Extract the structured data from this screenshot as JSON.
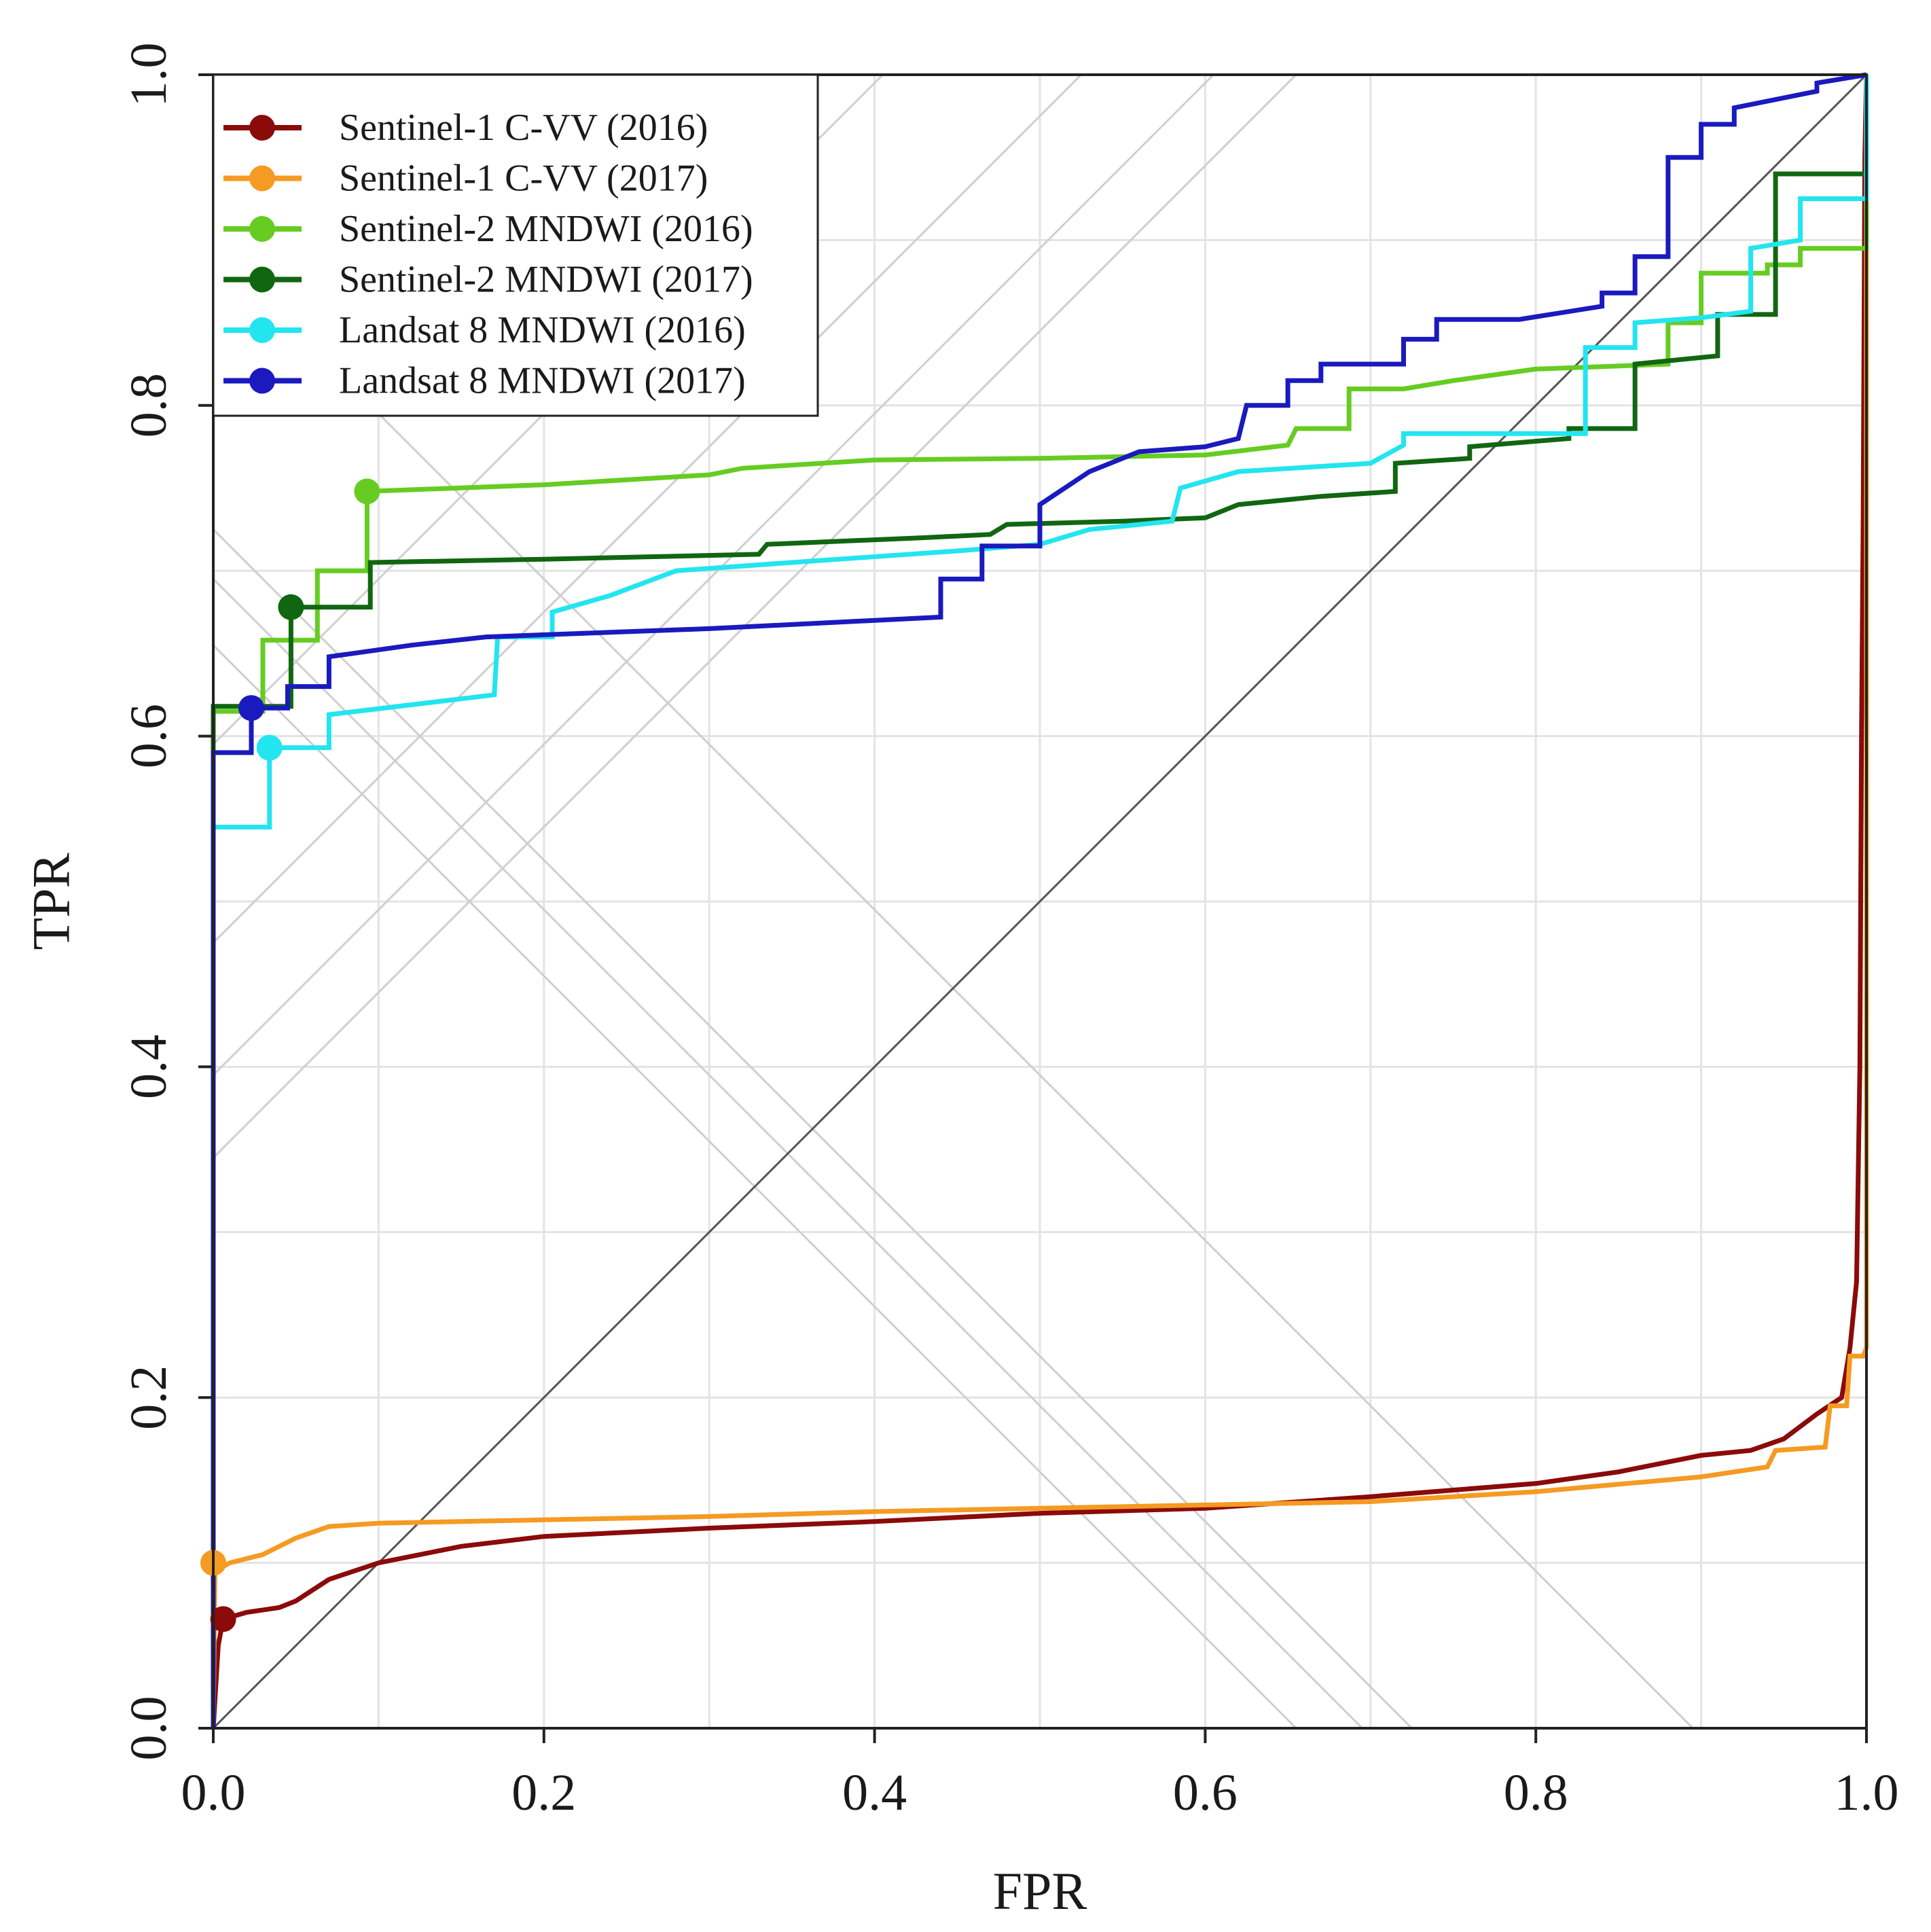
{
  "chart_data": {
    "type": "line",
    "title": "",
    "xlabel": "FPR",
    "ylabel": "TPR",
    "xlim": [
      0,
      1
    ],
    "ylim": [
      0,
      1
    ],
    "x_ticks": [
      0.0,
      0.2,
      0.4,
      0.6,
      0.8,
      1.0
    ],
    "y_ticks": [
      0.0,
      0.2,
      0.4,
      0.6,
      0.8,
      1.0
    ],
    "x_tick_labels": [
      "0.0",
      "0.2",
      "0.4",
      "0.6",
      "0.8",
      "1.0"
    ],
    "y_tick_labels": [
      "0.0",
      "0.2",
      "0.4",
      "0.6",
      "0.8",
      "1.0"
    ],
    "grid": true,
    "legend_position": "top-left",
    "reference_diagonal": true,
    "series": [
      {
        "name": "Sentinel-1 C-VV (2016)",
        "color": "#8B0A0A",
        "step": false,
        "optimal_point": [
          0.006,
          0.066
        ],
        "points": [
          [
            0.0,
            0.0
          ],
          [
            0.003,
            0.05
          ],
          [
            0.006,
            0.066
          ],
          [
            0.02,
            0.07
          ],
          [
            0.04,
            0.073
          ],
          [
            0.05,
            0.077
          ],
          [
            0.07,
            0.09
          ],
          [
            0.1,
            0.1
          ],
          [
            0.15,
            0.11
          ],
          [
            0.2,
            0.116
          ],
          [
            0.3,
            0.121
          ],
          [
            0.4,
            0.125
          ],
          [
            0.5,
            0.13
          ],
          [
            0.6,
            0.133
          ],
          [
            0.7,
            0.14
          ],
          [
            0.8,
            0.148
          ],
          [
            0.85,
            0.155
          ],
          [
            0.9,
            0.165
          ],
          [
            0.93,
            0.168
          ],
          [
            0.95,
            0.175
          ],
          [
            0.97,
            0.19
          ],
          [
            0.985,
            0.2
          ],
          [
            0.99,
            0.23
          ],
          [
            0.994,
            0.27
          ],
          [
            0.996,
            0.4
          ],
          [
            0.997,
            0.6
          ],
          [
            0.998,
            0.73
          ],
          [
            0.999,
            0.95
          ],
          [
            1.0,
            1.0
          ]
        ]
      },
      {
        "name": "Sentinel-1 C-VV (2017)",
        "color": "#F59A22",
        "step": false,
        "optimal_point": [
          0.0,
          0.1
        ],
        "points": [
          [
            0.0,
            0.0
          ],
          [
            0.001,
            0.095
          ],
          [
            0.01,
            0.1
          ],
          [
            0.03,
            0.105
          ],
          [
            0.05,
            0.115
          ],
          [
            0.07,
            0.122
          ],
          [
            0.1,
            0.124
          ],
          [
            0.2,
            0.126
          ],
          [
            0.3,
            0.128
          ],
          [
            0.4,
            0.131
          ],
          [
            0.5,
            0.133
          ],
          [
            0.6,
            0.135
          ],
          [
            0.7,
            0.137
          ],
          [
            0.8,
            0.143
          ],
          [
            0.9,
            0.152
          ],
          [
            0.94,
            0.158
          ],
          [
            0.945,
            0.168
          ],
          [
            0.975,
            0.17
          ],
          [
            0.978,
            0.195
          ],
          [
            0.988,
            0.195
          ],
          [
            0.99,
            0.225
          ],
          [
            0.998,
            0.225
          ],
          [
            1.0,
            0.23
          ],
          [
            1.0,
            1.0
          ]
        ]
      },
      {
        "name": "Sentinel-2 MNDWI (2016)",
        "color": "#66CC22",
        "step": true,
        "optimal_point": [
          0.093,
          0.748
        ],
        "points": [
          [
            0.0,
            0.0
          ],
          [
            0.0,
            0.615
          ],
          [
            0.03,
            0.615
          ],
          [
            0.03,
            0.658
          ],
          [
            0.063,
            0.658
          ],
          [
            0.063,
            0.7
          ],
          [
            0.093,
            0.7
          ],
          [
            0.093,
            0.748
          ],
          [
            0.2,
            0.752
          ],
          [
            0.3,
            0.758
          ],
          [
            0.32,
            0.762
          ],
          [
            0.4,
            0.767
          ],
          [
            0.5,
            0.768
          ],
          [
            0.6,
            0.77
          ],
          [
            0.65,
            0.776
          ],
          [
            0.655,
            0.786
          ],
          [
            0.687,
            0.786
          ],
          [
            0.687,
            0.81
          ],
          [
            0.72,
            0.81
          ],
          [
            0.75,
            0.815
          ],
          [
            0.8,
            0.822
          ],
          [
            0.88,
            0.825
          ],
          [
            0.88,
            0.85
          ],
          [
            0.9,
            0.85
          ],
          [
            0.9,
            0.88
          ],
          [
            0.94,
            0.88
          ],
          [
            0.94,
            0.885
          ],
          [
            0.96,
            0.885
          ],
          [
            0.96,
            0.895
          ],
          [
            1.0,
            0.895
          ],
          [
            1.0,
            1.0
          ]
        ]
      },
      {
        "name": "Sentinel-2 MNDWI (2017)",
        "color": "#116611",
        "step": true,
        "optimal_point": [
          0.047,
          0.678
        ],
        "points": [
          [
            0.0,
            0.0
          ],
          [
            0.0,
            0.618
          ],
          [
            0.047,
            0.618
          ],
          [
            0.047,
            0.678
          ],
          [
            0.095,
            0.678
          ],
          [
            0.095,
            0.705
          ],
          [
            0.2,
            0.707
          ],
          [
            0.33,
            0.71
          ],
          [
            0.335,
            0.716
          ],
          [
            0.43,
            0.72
          ],
          [
            0.47,
            0.722
          ],
          [
            0.48,
            0.728
          ],
          [
            0.55,
            0.73
          ],
          [
            0.6,
            0.732
          ],
          [
            0.62,
            0.74
          ],
          [
            0.67,
            0.745
          ],
          [
            0.715,
            0.748
          ],
          [
            0.715,
            0.765
          ],
          [
            0.76,
            0.768
          ],
          [
            0.76,
            0.775
          ],
          [
            0.82,
            0.78
          ],
          [
            0.82,
            0.786
          ],
          [
            0.86,
            0.786
          ],
          [
            0.86,
            0.825
          ],
          [
            0.91,
            0.83
          ],
          [
            0.91,
            0.855
          ],
          [
            0.945,
            0.855
          ],
          [
            0.945,
            0.94
          ],
          [
            1.0,
            0.94
          ],
          [
            1.0,
            1.0
          ]
        ]
      },
      {
        "name": "Landsat 8 MNDWI (2016)",
        "color": "#22E5F0",
        "step": true,
        "optimal_point": [
          0.034,
          0.593
        ],
        "points": [
          [
            0.0,
            0.0
          ],
          [
            0.0,
            0.545
          ],
          [
            0.034,
            0.545
          ],
          [
            0.034,
            0.593
          ],
          [
            0.07,
            0.593
          ],
          [
            0.07,
            0.613
          ],
          [
            0.17,
            0.625
          ],
          [
            0.172,
            0.66
          ],
          [
            0.205,
            0.66
          ],
          [
            0.205,
            0.675
          ],
          [
            0.24,
            0.685
          ],
          [
            0.28,
            0.7
          ],
          [
            0.35,
            0.705
          ],
          [
            0.45,
            0.712
          ],
          [
            0.5,
            0.716
          ],
          [
            0.53,
            0.725
          ],
          [
            0.58,
            0.73
          ],
          [
            0.585,
            0.75
          ],
          [
            0.62,
            0.76
          ],
          [
            0.7,
            0.765
          ],
          [
            0.72,
            0.776
          ],
          [
            0.72,
            0.783
          ],
          [
            0.83,
            0.783
          ],
          [
            0.83,
            0.835
          ],
          [
            0.86,
            0.835
          ],
          [
            0.86,
            0.85
          ],
          [
            0.9,
            0.853
          ],
          [
            0.93,
            0.857
          ],
          [
            0.93,
            0.895
          ],
          [
            0.96,
            0.9
          ],
          [
            0.96,
            0.925
          ],
          [
            1.0,
            0.925
          ],
          [
            1.0,
            1.0
          ]
        ]
      },
      {
        "name": "Landsat 8 MNDWI (2017)",
        "color": "#1A1ABF",
        "step": true,
        "optimal_point": [
          0.023,
          0.617
        ],
        "points": [
          [
            0.0,
            0.0
          ],
          [
            0.0,
            0.59
          ],
          [
            0.023,
            0.59
          ],
          [
            0.023,
            0.617
          ],
          [
            0.045,
            0.617
          ],
          [
            0.045,
            0.63
          ],
          [
            0.07,
            0.63
          ],
          [
            0.07,
            0.648
          ],
          [
            0.12,
            0.655
          ],
          [
            0.165,
            0.66
          ],
          [
            0.3,
            0.665
          ],
          [
            0.4,
            0.67
          ],
          [
            0.44,
            0.672
          ],
          [
            0.44,
            0.695
          ],
          [
            0.465,
            0.695
          ],
          [
            0.465,
            0.715
          ],
          [
            0.5,
            0.715
          ],
          [
            0.5,
            0.74
          ],
          [
            0.53,
            0.76
          ],
          [
            0.56,
            0.772
          ],
          [
            0.6,
            0.775
          ],
          [
            0.62,
            0.78
          ],
          [
            0.625,
            0.8
          ],
          [
            0.65,
            0.8
          ],
          [
            0.65,
            0.815
          ],
          [
            0.67,
            0.815
          ],
          [
            0.67,
            0.825
          ],
          [
            0.72,
            0.825
          ],
          [
            0.72,
            0.84
          ],
          [
            0.74,
            0.84
          ],
          [
            0.74,
            0.852
          ],
          [
            0.79,
            0.852
          ],
          [
            0.84,
            0.86
          ],
          [
            0.84,
            0.868
          ],
          [
            0.86,
            0.868
          ],
          [
            0.86,
            0.89
          ],
          [
            0.88,
            0.89
          ],
          [
            0.88,
            0.95
          ],
          [
            0.9,
            0.95
          ],
          [
            0.9,
            0.97
          ],
          [
            0.92,
            0.97
          ],
          [
            0.92,
            0.98
          ],
          [
            0.97,
            0.99
          ],
          [
            0.97,
            0.995
          ],
          [
            1.0,
            1.0
          ]
        ]
      }
    ],
    "iso_lines": {
      "diagonal_offsets": [
        0.345,
        0.395,
        0.475,
        0.595
      ],
      "anti_diagonal_sums": [
        0.655,
        0.695,
        0.725,
        0.895
      ]
    }
  }
}
